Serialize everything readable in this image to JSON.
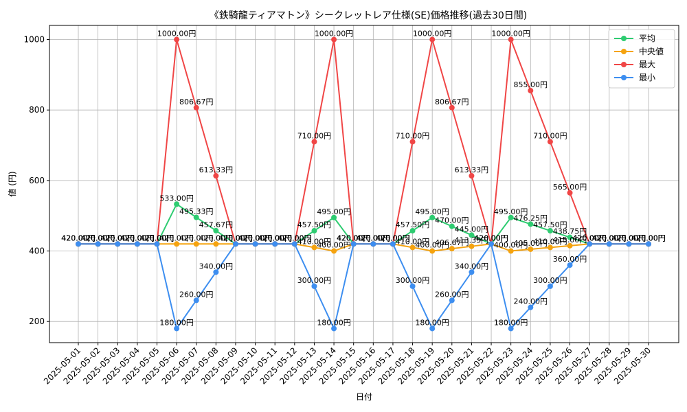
{
  "chart_data": {
    "type": "line",
    "title": "《鉄騎龍ティアマトン》シークレットレア仕様(SE)価格推移(過去30日間)",
    "xlabel": "日付",
    "ylabel": "値 (円)",
    "ylim": [
      140,
      1040
    ],
    "yticks": [
      200,
      400,
      600,
      800,
      1000
    ],
    "grid": true,
    "legend_position": "top-right",
    "value_suffix": "円",
    "categories": [
      "2025-05-01",
      "2025-05-02",
      "2025-05-03",
      "2025-05-04",
      "2025-05-05",
      "2025-05-06",
      "2025-05-07",
      "2025-05-08",
      "2025-05-09",
      "2025-05-10",
      "2025-05-11",
      "2025-05-12",
      "2025-05-13",
      "2025-05-14",
      "2025-05-15",
      "2025-05-16",
      "2025-05-17",
      "2025-05-18",
      "2025-05-19",
      "2025-05-20",
      "2025-05-21",
      "2025-05-22",
      "2025-05-23",
      "2025-05-24",
      "2025-05-25",
      "2025-05-26",
      "2025-05-27",
      "2025-05-28",
      "2025-05-29",
      "2025-05-30"
    ],
    "series": [
      {
        "name": "平均",
        "color": "#2ecc71",
        "values": [
          420,
          420,
          420,
          420,
          420,
          533,
          495.33,
          457.67,
          420,
          420,
          420,
          420,
          457.5,
          495,
          420,
          420,
          420,
          457.5,
          495,
          470,
          445,
          420,
          495,
          476.25,
          457.5,
          438.75,
          420,
          420,
          420,
          420
        ]
      },
      {
        "name": "中央値",
        "color": "#f5a30f",
        "values": [
          420,
          420,
          420,
          420,
          420,
          420,
          420,
          420,
          420,
          420,
          420,
          420,
          410,
          400,
          420,
          420,
          420,
          410,
          400,
          406.67,
          413.33,
          420,
          400,
          405,
          410,
          415,
          420,
          420,
          420,
          420
        ]
      },
      {
        "name": "最大",
        "color": "#f04646",
        "values": [
          420,
          420,
          420,
          420,
          420,
          1000,
          806.67,
          613.33,
          420,
          420,
          420,
          420,
          710,
          1000,
          420,
          420,
          420,
          710,
          1000,
          806.67,
          613.33,
          420,
          1000,
          855,
          710,
          565,
          420,
          420,
          420,
          420
        ]
      },
      {
        "name": "最小",
        "color": "#3d8ef0",
        "values": [
          420,
          420,
          420,
          420,
          420,
          180,
          260,
          340,
          420,
          420,
          420,
          420,
          300,
          180,
          420,
          420,
          420,
          300,
          180,
          260,
          340,
          420,
          180,
          240,
          300,
          360,
          420,
          420,
          420,
          420
        ]
      }
    ]
  }
}
